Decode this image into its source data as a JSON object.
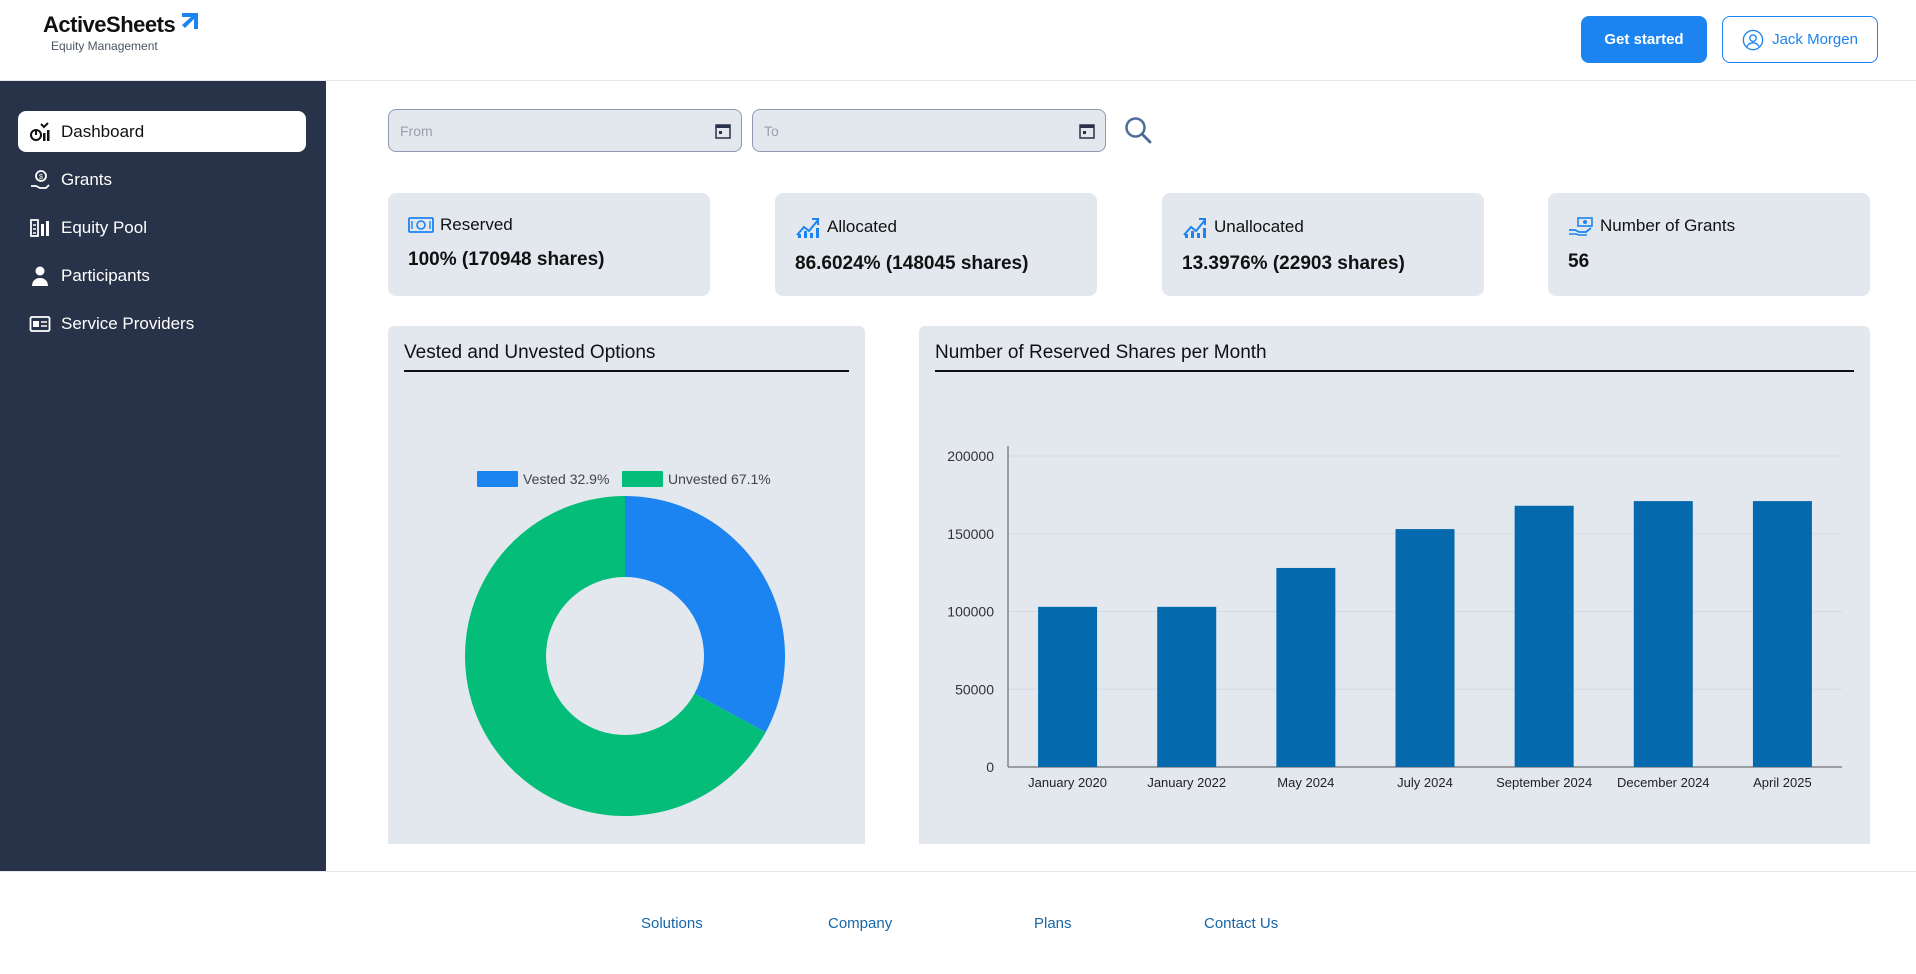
{
  "header": {
    "logo_title": "ActiveSheets",
    "logo_subtitle": "Equity Management",
    "get_started": "Get started",
    "user_name": "Jack Morgen"
  },
  "sidebar": {
    "items": [
      {
        "label": "Dashboard",
        "icon": "dashboard-icon"
      },
      {
        "label": "Grants",
        "icon": "grants-icon"
      },
      {
        "label": "Equity Pool",
        "icon": "equity-pool-icon"
      },
      {
        "label": "Participants",
        "icon": "participant-icon"
      },
      {
        "label": "Service Providers",
        "icon": "service-provider-icon"
      }
    ]
  },
  "filters": {
    "from_placeholder": "From",
    "to_placeholder": "To"
  },
  "stats": [
    {
      "label": "Reserved",
      "value": "100% (170948 shares)"
    },
    {
      "label": "Allocated",
      "value": "86.6024% (148045 shares)"
    },
    {
      "label": "Unallocated",
      "value": "13.3976% (22903 shares)"
    },
    {
      "label": "Number of Grants",
      "value": "56"
    }
  ],
  "colors": {
    "accent": "#1b84f1",
    "sidebar": "#283248",
    "card": "#e3e8ef",
    "vested": "#1b84f1",
    "unvested": "#03bd79",
    "bar": "#056aad"
  },
  "chart_data": [
    {
      "type": "pie",
      "title": "Vested and Unvested Options",
      "categories": [
        "Vested 32.9%",
        "Unvested 67.1%"
      ],
      "values": [
        32.9,
        67.1
      ],
      "donut": true,
      "legend": "top"
    },
    {
      "type": "bar",
      "title": "Number of Reserved Shares per Month",
      "categories": [
        "January 2020",
        "January 2022",
        "May 2024",
        "July 2024",
        "September 2024",
        "December 2024",
        "April 2025"
      ],
      "values": [
        103000,
        103000,
        128000,
        153000,
        168000,
        171000,
        171000
      ],
      "yticks": [
        "200000",
        "150000",
        "100000",
        "50000",
        "0"
      ],
      "ylim": [
        0,
        200000
      ],
      "grid": true
    }
  ],
  "footer": {
    "links": [
      "Solutions",
      "Company",
      "Plans",
      "Contact Us"
    ]
  }
}
